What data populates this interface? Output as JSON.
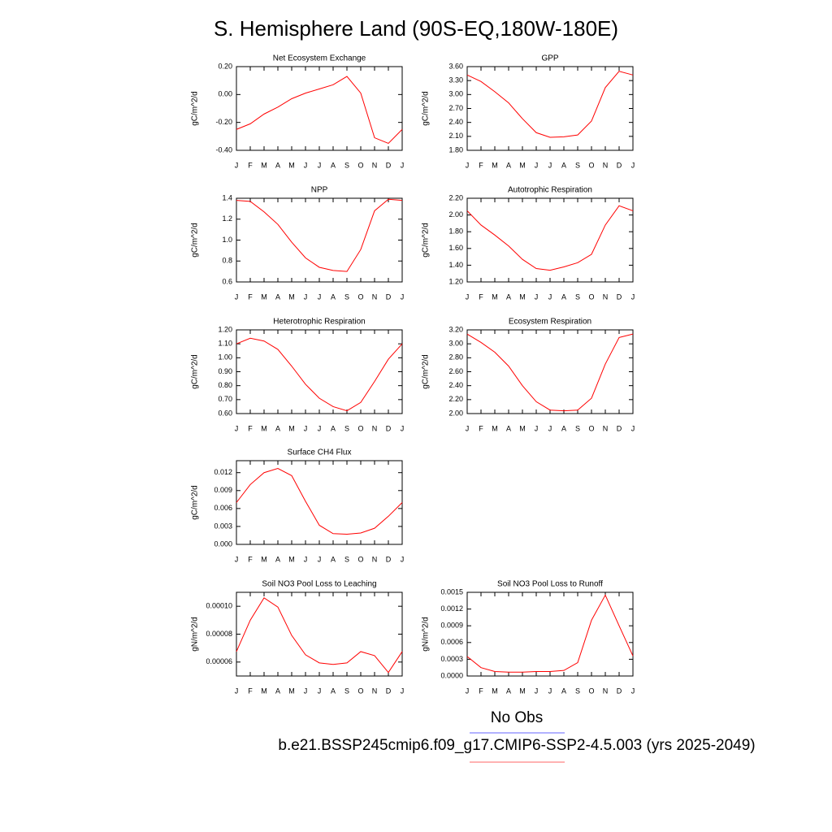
{
  "title": "S. Hemisphere Land (90S-EQ,180W-180E)",
  "legend": [
    {
      "name": "No Obs",
      "color": "#6666ff"
    },
    {
      "name": "b.e21.BSSP245cmip6.f09_g17.CMIP6-SSP2-4.5.003 (yrs 2025-2049)",
      "color": "#ff6666"
    }
  ],
  "chart_data": [
    {
      "type": "line",
      "title": "Net Ecosystem Exchange",
      "y_label": "gC/m^2/d",
      "color": "#ff0000",
      "categories": [
        "J",
        "F",
        "M",
        "A",
        "M",
        "J",
        "J",
        "A",
        "S",
        "O",
        "N",
        "D",
        "J"
      ],
      "values": [
        -0.25,
        -0.21,
        -0.14,
        -0.09,
        -0.03,
        0.01,
        0.04,
        0.07,
        0.13,
        0.01,
        -0.31,
        -0.35,
        -0.25
      ],
      "ylim": [
        -0.4,
        0.2
      ],
      "yticks": [
        {
          "value": -0.4,
          "label": "-0.40"
        },
        {
          "value": -0.2,
          "label": "-0.20"
        },
        {
          "value": 0,
          "label": "0.00"
        },
        {
          "value": 0.2,
          "label": "0.20"
        }
      ]
    },
    {
      "type": "line",
      "title": "GPP",
      "y_label": "gC/m^2/d",
      "color": "#ff0000",
      "categories": [
        "J",
        "F",
        "M",
        "A",
        "M",
        "J",
        "J",
        "A",
        "S",
        "O",
        "N",
        "D",
        "J"
      ],
      "values": [
        3.42,
        3.28,
        3.06,
        2.82,
        2.48,
        2.18,
        2.08,
        2.09,
        2.13,
        2.43,
        3.15,
        3.5,
        3.42
      ],
      "ylim": [
        1.8,
        3.6
      ],
      "yticks": [
        {
          "value": 1.8,
          "label": "1.80"
        },
        {
          "value": 2.1,
          "label": "2.10"
        },
        {
          "value": 2.4,
          "label": "2.40"
        },
        {
          "value": 2.7,
          "label": "2.70"
        },
        {
          "value": 3,
          "label": "3.00"
        },
        {
          "value": 3.3,
          "label": "3.30"
        },
        {
          "value": 3.6,
          "label": "3.60"
        }
      ]
    },
    {
      "type": "line",
      "title": "NPP",
      "y_label": "gC/m^2/d",
      "color": "#ff0000",
      "categories": [
        "J",
        "F",
        "M",
        "A",
        "M",
        "J",
        "J",
        "A",
        "S",
        "O",
        "N",
        "D",
        "J"
      ],
      "values": [
        1.38,
        1.37,
        1.27,
        1.15,
        0.98,
        0.83,
        0.74,
        0.71,
        0.7,
        0.91,
        1.28,
        1.39,
        1.38
      ],
      "ylim": [
        0.6,
        1.4
      ],
      "yticks": [
        0.6,
        0.8,
        {
          "value": 1,
          "label": "1.0"
        },
        1.2,
        1.4
      ]
    },
    {
      "type": "line",
      "title": "Autotrophic Respiration",
      "y_label": "gC/m^2/d",
      "color": "#ff0000",
      "categories": [
        "J",
        "F",
        "M",
        "A",
        "M",
        "J",
        "J",
        "A",
        "S",
        "O",
        "N",
        "D",
        "J"
      ],
      "values": [
        2.05,
        1.88,
        1.76,
        1.63,
        1.47,
        1.36,
        1.34,
        1.38,
        1.43,
        1.53,
        1.88,
        2.11,
        2.05
      ],
      "ylim": [
        1.2,
        2.2
      ],
      "yticks": [
        {
          "value": 1.2,
          "label": "1.20"
        },
        {
          "value": 1.4,
          "label": "1.40"
        },
        {
          "value": 1.6,
          "label": "1.60"
        },
        {
          "value": 1.8,
          "label": "1.80"
        },
        {
          "value": 2,
          "label": "2.00"
        },
        {
          "value": 2.2,
          "label": "2.20"
        }
      ]
    },
    {
      "type": "line",
      "title": "Heterotrophic Respiration",
      "y_label": "gC/m^2/d",
      "color": "#ff0000",
      "categories": [
        "J",
        "F",
        "M",
        "A",
        "M",
        "J",
        "J",
        "A",
        "S",
        "O",
        "N",
        "D",
        "J"
      ],
      "values": [
        1.1,
        1.14,
        1.12,
        1.06,
        0.94,
        0.81,
        0.71,
        0.65,
        0.62,
        0.68,
        0.83,
        0.99,
        1.1
      ],
      "ylim": [
        0.6,
        1.2
      ],
      "yticks": [
        {
          "value": 0.6,
          "label": "0.60"
        },
        {
          "value": 0.7,
          "label": "0.70"
        },
        {
          "value": 0.8,
          "label": "0.80"
        },
        {
          "value": 0.9,
          "label": "0.90"
        },
        {
          "value": 1,
          "label": "1.00"
        },
        {
          "value": 1.1,
          "label": "1.10"
        },
        {
          "value": 1.2,
          "label": "1.20"
        }
      ]
    },
    {
      "type": "line",
      "title": "Ecosystem Respiration",
      "y_label": "gC/m^2/d",
      "color": "#ff0000",
      "categories": [
        "J",
        "F",
        "M",
        "A",
        "M",
        "J",
        "J",
        "A",
        "S",
        "O",
        "N",
        "D",
        "J"
      ],
      "values": [
        3.14,
        3.02,
        2.88,
        2.68,
        2.4,
        2.17,
        2.05,
        2.04,
        2.05,
        2.22,
        2.71,
        3.09,
        3.14
      ],
      "ylim": [
        2,
        3.2
      ],
      "yticks": [
        {
          "value": 2,
          "label": "2.00"
        },
        {
          "value": 2.2,
          "label": "2.20"
        },
        {
          "value": 2.4,
          "label": "2.40"
        },
        {
          "value": 2.6,
          "label": "2.60"
        },
        {
          "value": 2.8,
          "label": "2.80"
        },
        {
          "value": 3,
          "label": "3.00"
        },
        {
          "value": 3.2,
          "label": "3.20"
        }
      ]
    },
    {
      "type": "line",
      "title": "Surface CH4 Flux",
      "y_label": "gC/m^2/d",
      "color": "#ff0000",
      "categories": [
        "J",
        "F",
        "M",
        "A",
        "M",
        "J",
        "J",
        "A",
        "S",
        "O",
        "N",
        "D",
        "J"
      ],
      "values": [
        0.007,
        0.01,
        0.012,
        0.0127,
        0.0115,
        0.0072,
        0.0032,
        0.0018,
        0.0017,
        0.0019,
        0.0027,
        0.0047,
        0.007
      ],
      "ylim": [
        0,
        0.014
      ],
      "yticks": [
        {
          "value": 0,
          "label": "0.000"
        },
        0.003,
        0.006,
        0.009,
        0.012
      ]
    },
    {
      "type": "line",
      "title": "Soil NO3 Pool Loss to Leaching",
      "y_label": "gN/m^2/d",
      "color": "#ff0000",
      "categories": [
        "J",
        "F",
        "M",
        "A",
        "M",
        "J",
        "J",
        "A",
        "S",
        "O",
        "N",
        "D",
        "J"
      ],
      "values": [
        6.75e-05,
        9e-05,
        0.000106,
        9.94e-05,
        7.91e-05,
        6.52e-05,
        5.94e-05,
        5.83e-05,
        5.94e-05,
        6.75e-05,
        6.46e-05,
        5.25e-05,
        6.75e-05
      ],
      "ylim": [
        5e-05,
        0.00011
      ],
      "yticks": [
        6e-05,
        8e-05,
        {
          "value": 0.0001,
          "label": "0.00010"
        }
      ]
    },
    {
      "type": "line",
      "title": "Soil NO3 Pool Loss to Runoff",
      "y_label": "gN/m^2/d",
      "color": "#ff0000",
      "categories": [
        "J",
        "F",
        "M",
        "A",
        "M",
        "J",
        "J",
        "A",
        "S",
        "O",
        "N",
        "D",
        "J"
      ],
      "values": [
        0.00035,
        0.00015,
        8e-05,
        7e-05,
        7e-05,
        8e-05,
        8e-05,
        0.0001,
        0.00024,
        0.001,
        0.00145,
        0.0009,
        0.00036
      ],
      "ylim": [
        0,
        0.0015
      ],
      "yticks": [
        {
          "value": 0,
          "label": "0.0000"
        },
        0.0003,
        0.0006,
        0.0009,
        0.0012,
        0.0015
      ]
    }
  ]
}
